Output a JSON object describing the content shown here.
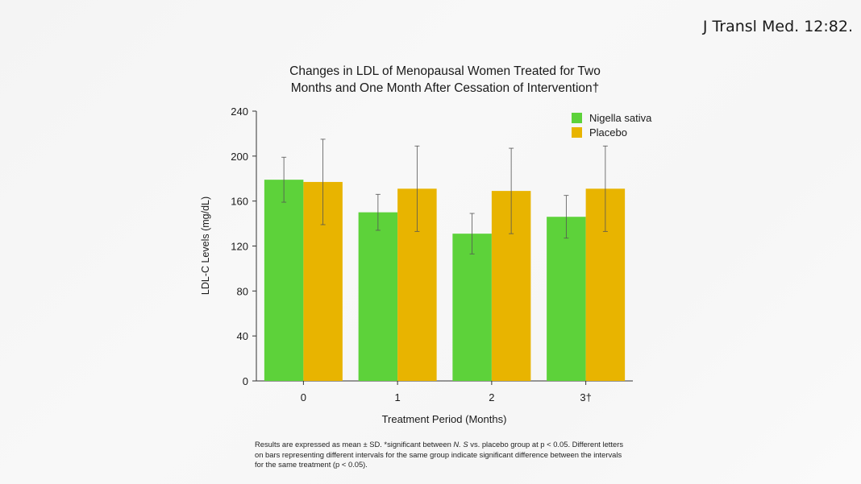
{
  "citation": "J Transl Med. 12:82.",
  "chart_data": {
    "type": "bar",
    "title_line1": "Changes in LDL of Menopausal Women Treated for Two",
    "title_line2": "Months and One Month After Cessation of Intervention†",
    "xlabel": "Treatment Period (Months)",
    "ylabel": "LDL-C Levels (mg/dL)",
    "ylim": [
      0,
      240
    ],
    "yticks": [
      0,
      40,
      80,
      120,
      160,
      200,
      240
    ],
    "categories": [
      "0",
      "1",
      "2",
      "3†"
    ],
    "series": [
      {
        "name": "Nigella sativa",
        "color": "#5dd23a",
        "values": [
          179,
          150,
          131,
          146
        ],
        "error": [
          20,
          16,
          18,
          19
        ]
      },
      {
        "name": "Placebo",
        "color": "#e8b400",
        "values": [
          177,
          171,
          169,
          171
        ],
        "error": [
          38,
          38,
          38,
          38
        ]
      }
    ],
    "legend_position": "top-right",
    "grid": false
  },
  "footnote": {
    "part1": "Results are expressed as mean ± SD. *significant between ",
    "italic": "N. S",
    "part2": " vs. placebo group at p < 0.05. Different letters on bars representing different intervals for the same group indicate significant difference between the intervals for the same treatment (p < 0.05)."
  }
}
